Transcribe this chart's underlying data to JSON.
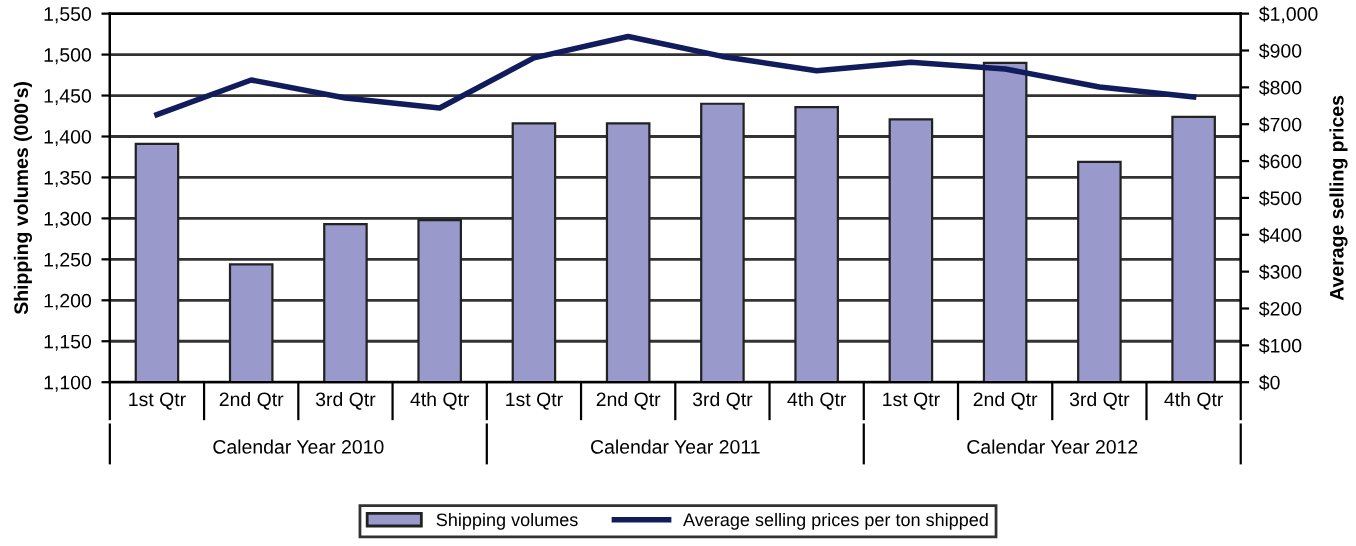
{
  "chart_data": {
    "type": "bar",
    "ylabel": "Shipping volumes (000's)",
    "y2label": "Average selling prices",
    "categories": [
      "1st Qtr",
      "2nd Qtr",
      "3rd Qtr",
      "4th Qtr",
      "1st Qtr",
      "2nd Qtr",
      "3rd Qtr",
      "4th Qtr",
      "1st Qtr",
      "2nd Qtr",
      "3rd Qtr",
      "4th Qtr"
    ],
    "annotations": [
      "Calendar Year 2010",
      "Calendar Year 2011",
      "Calendar Year 2012"
    ],
    "series": [
      {
        "name": "Shipping volumes",
        "color": "#9999cc",
        "values": [
          1391,
          1244,
          1293,
          1298,
          1416,
          1416,
          1440,
          1436,
          1421,
          1490,
          1369,
          1424
        ]
      },
      {
        "name": "Average selling prices per ton shipped",
        "type": "line",
        "axis": "y2",
        "color": "#101c5c",
        "values": [
          726,
          820,
          771,
          744,
          880,
          938,
          884,
          845,
          868,
          850,
          801,
          774
        ]
      }
    ],
    "ylim": [
      1100,
      1550
    ],
    "yticks": [
      {
        "value": 1100,
        "label": "1,100"
      },
      {
        "value": 1150,
        "label": "1,150"
      },
      {
        "value": 1200,
        "label": "1,200"
      },
      {
        "value": 1250,
        "label": "1,250"
      },
      {
        "value": 1300,
        "label": "1,300"
      },
      {
        "value": 1350,
        "label": "1,350"
      },
      {
        "value": 1400,
        "label": "1,400"
      },
      {
        "value": 1450,
        "label": "1,450"
      },
      {
        "value": 1500,
        "label": "1,500"
      },
      {
        "value": 1550,
        "label": "1,550"
      }
    ],
    "y2lim": [
      0,
      1000
    ],
    "y2ticks": [
      {
        "value": 0,
        "label": "$0"
      },
      {
        "value": 100,
        "label": "$100"
      },
      {
        "value": 200,
        "label": "$200"
      },
      {
        "value": 300,
        "label": "$300"
      },
      {
        "value": 400,
        "label": "$400"
      },
      {
        "value": 500,
        "label": "$500"
      },
      {
        "value": 600,
        "label": "$600"
      },
      {
        "value": 700,
        "label": "$700"
      },
      {
        "value": 800,
        "label": "$800"
      },
      {
        "value": 900,
        "label": "$900"
      },
      {
        "value": 1000,
        "label": "$1,000"
      }
    ],
    "grid": "y",
    "legend": "bottom",
    "marker": "none",
    "line_style": "solid"
  }
}
